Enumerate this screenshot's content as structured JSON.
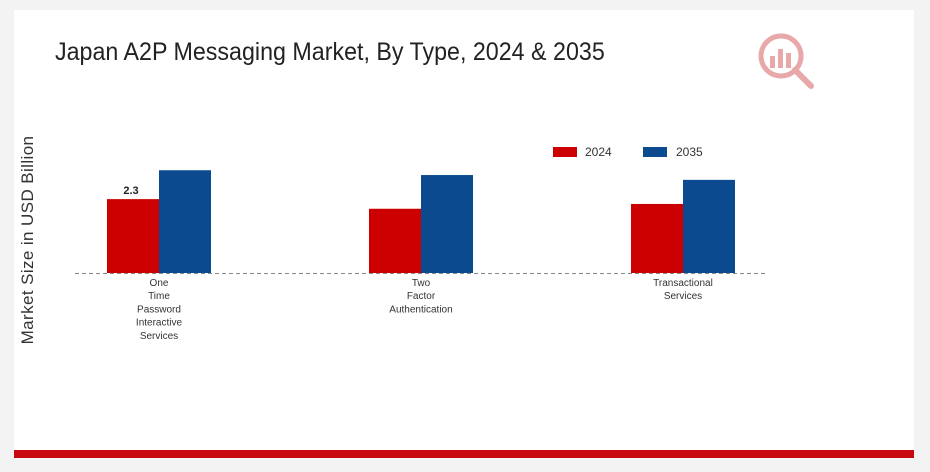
{
  "chart_data": {
    "type": "bar",
    "title": "Japan A2P Messaging Market, By Type, 2024 & 2035",
    "ylabel": "Market Size in USD Billion",
    "xlabel": "",
    "categories": [
      [
        "One",
        "Time",
        "Password",
        "Interactive",
        "Services"
      ],
      [
        "Two",
        "Factor",
        "Authentication"
      ],
      [
        "Transactional",
        "Services"
      ]
    ],
    "series": [
      {
        "name": "2024",
        "color": "#cc0000",
        "values": [
          2.3,
          2.0,
          2.15
        ]
      },
      {
        "name": "2035",
        "color": "#0b4a8f",
        "values": [
          3.2,
          3.05,
          2.9
        ]
      }
    ],
    "data_labels": [
      {
        "series": 0,
        "index": 0,
        "text": "2.3"
      }
    ],
    "ylim": [
      0,
      8.5
    ],
    "grid": false,
    "legend": "top-right"
  },
  "logo": {
    "icon": "brand-logo-icon",
    "color": "#c8090f"
  }
}
